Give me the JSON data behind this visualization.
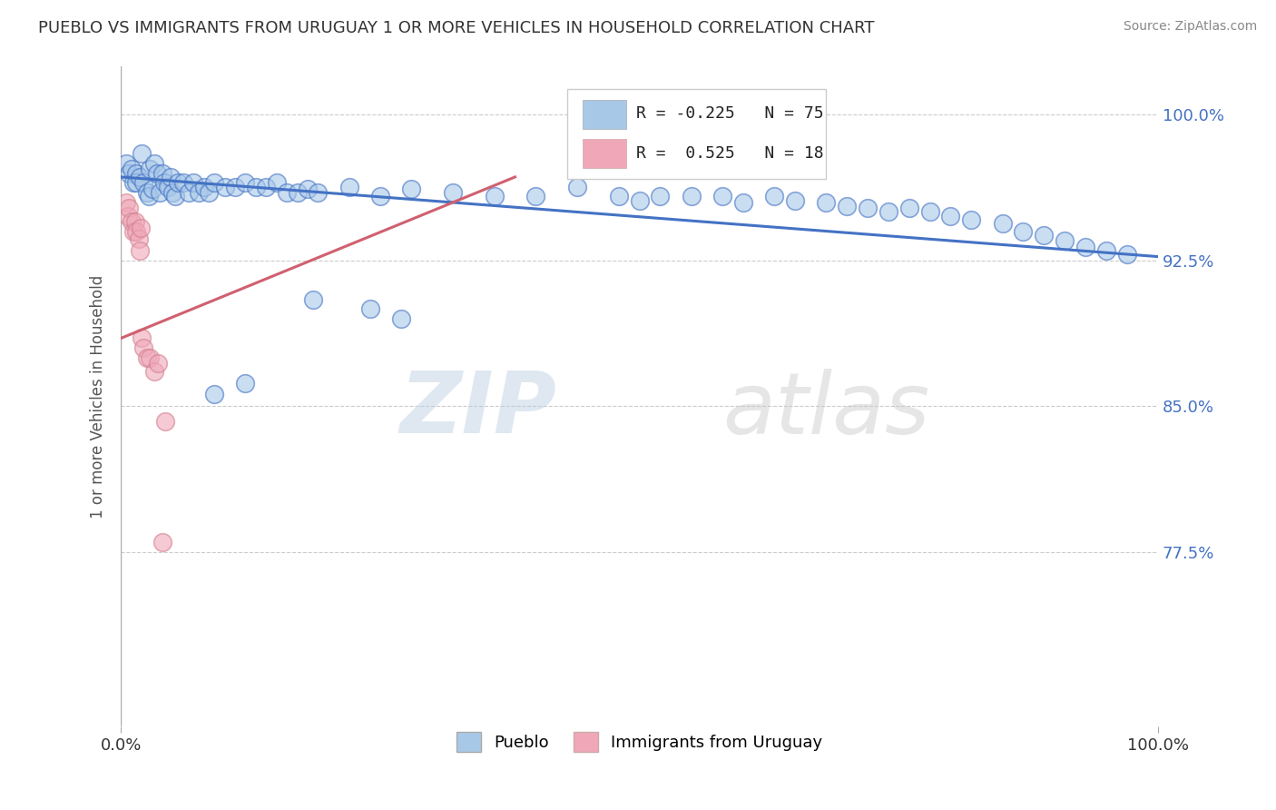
{
  "title": "PUEBLO VS IMMIGRANTS FROM URUGUAY 1 OR MORE VEHICLES IN HOUSEHOLD CORRELATION CHART",
  "source": "Source: ZipAtlas.com",
  "ylabel": "1 or more Vehicles in Household",
  "legend_label1": "Pueblo",
  "legend_label2": "Immigrants from Uruguay",
  "R1": -0.225,
  "N1": 75,
  "R2": 0.525,
  "N2": 18,
  "color1": "#a8c8e8",
  "color2": "#f0a8b8",
  "line_color1": "#4472c4",
  "line_color2": "#d06070",
  "watermark_zip": "ZIP",
  "watermark_atlas": "atlas",
  "xmin": 0.0,
  "xmax": 1.0,
  "ymin": 0.685,
  "ymax": 1.025,
  "yticks": [
    0.775,
    0.85,
    0.925,
    1.0
  ],
  "ytick_labels": [
    "77.5%",
    "85.0%",
    "92.5%",
    "100.0%"
  ],
  "blue_x": [
    0.005,
    0.008,
    0.01,
    0.012,
    0.015,
    0.015,
    0.018,
    0.02,
    0.022,
    0.025,
    0.027,
    0.028,
    0.03,
    0.032,
    0.035,
    0.037,
    0.04,
    0.042,
    0.045,
    0.048,
    0.05,
    0.052,
    0.055,
    0.06,
    0.065,
    0.07,
    0.075,
    0.08,
    0.085,
    0.09,
    0.1,
    0.11,
    0.12,
    0.13,
    0.14,
    0.15,
    0.16,
    0.17,
    0.18,
    0.19,
    0.22,
    0.25,
    0.28,
    0.32,
    0.36,
    0.4,
    0.44,
    0.48,
    0.5,
    0.52,
    0.55,
    0.58,
    0.6,
    0.63,
    0.65,
    0.68,
    0.7,
    0.72,
    0.74,
    0.76,
    0.78,
    0.8,
    0.82,
    0.85,
    0.87,
    0.89,
    0.91,
    0.93,
    0.95,
    0.97,
    0.185,
    0.24,
    0.27,
    0.12,
    0.09
  ],
  "blue_y": [
    0.975,
    0.97,
    0.972,
    0.965,
    0.97,
    0.965,
    0.968,
    0.98,
    0.965,
    0.96,
    0.958,
    0.972,
    0.962,
    0.975,
    0.97,
    0.96,
    0.97,
    0.965,
    0.963,
    0.968,
    0.96,
    0.958,
    0.965,
    0.965,
    0.96,
    0.965,
    0.96,
    0.963,
    0.96,
    0.965,
    0.963,
    0.963,
    0.965,
    0.963,
    0.963,
    0.965,
    0.96,
    0.96,
    0.962,
    0.96,
    0.963,
    0.958,
    0.962,
    0.96,
    0.958,
    0.958,
    0.963,
    0.958,
    0.956,
    0.958,
    0.958,
    0.958,
    0.955,
    0.958,
    0.956,
    0.955,
    0.953,
    0.952,
    0.95,
    0.952,
    0.95,
    0.948,
    0.946,
    0.944,
    0.94,
    0.938,
    0.935,
    0.932,
    0.93,
    0.928,
    0.905,
    0.9,
    0.895,
    0.862,
    0.856
  ],
  "pink_x": [
    0.005,
    0.007,
    0.008,
    0.01,
    0.012,
    0.014,
    0.015,
    0.017,
    0.018,
    0.019,
    0.02,
    0.022,
    0.025,
    0.028,
    0.032,
    0.036,
    0.04,
    0.043
  ],
  "pink_y": [
    0.955,
    0.948,
    0.952,
    0.945,
    0.94,
    0.945,
    0.94,
    0.936,
    0.93,
    0.942,
    0.885,
    0.88,
    0.875,
    0.875,
    0.868,
    0.872,
    0.78,
    0.842
  ],
  "blue_trend_x0": 0.0,
  "blue_trend_x1": 1.0,
  "blue_trend_y0": 0.968,
  "blue_trend_y1": 0.927,
  "pink_trend_x0": 0.0,
  "pink_trend_x1": 0.38,
  "pink_trend_y0": 0.885,
  "pink_trend_y1": 0.968
}
